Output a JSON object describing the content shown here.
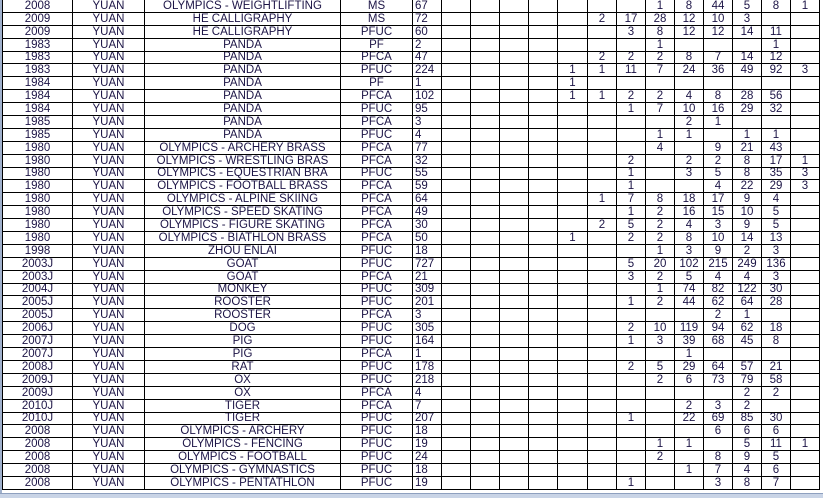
{
  "rows": [
    [
      "2008",
      "YUAN",
      "OLYMPICS - WEIGHTLIFTING",
      "MS",
      "67",
      [
        "",
        "",
        "",
        "",
        "",
        "",
        "",
        "1",
        "8",
        "44",
        "5",
        "8",
        "1"
      ]
    ],
    [
      "2009",
      "YUAN",
      "HE CALLIGRAPHY",
      "MS",
      "72",
      [
        "",
        "",
        "",
        "",
        "",
        "2",
        "17",
        "28",
        "12",
        "10",
        "3",
        "",
        ""
      ]
    ],
    [
      "2009",
      "YUAN",
      "HE CALLIGRAPHY",
      "PFUC",
      "60",
      [
        "",
        "",
        "",
        "",
        "",
        "",
        "3",
        "8",
        "12",
        "12",
        "14",
        "11",
        ""
      ]
    ],
    [
      "1983",
      "YUAN",
      "PANDA",
      "PF",
      "2",
      [
        "",
        "",
        "",
        "",
        "",
        "",
        "",
        "1",
        "",
        "",
        "",
        "1",
        ""
      ]
    ],
    [
      "1983",
      "YUAN",
      "PANDA",
      "PFCA",
      "47",
      [
        "",
        "",
        "",
        "",
        "",
        "2",
        "2",
        "2",
        "8",
        "7",
        "14",
        "12",
        ""
      ]
    ],
    [
      "1983",
      "YUAN",
      "PANDA",
      "PFUC",
      "224",
      [
        "",
        "",
        "",
        "",
        "1",
        "1",
        "11",
        "7",
        "24",
        "36",
        "49",
        "92",
        "3"
      ]
    ],
    [
      "1984",
      "YUAN",
      "PANDA",
      "PF",
      "1",
      [
        "",
        "",
        "",
        "",
        "1",
        "",
        "",
        "",
        "",
        "",
        "",
        "",
        ""
      ]
    ],
    [
      "1984",
      "YUAN",
      "PANDA",
      "PFCA",
      "102",
      [
        "",
        "",
        "",
        "",
        "1",
        "1",
        "2",
        "2",
        "4",
        "8",
        "28",
        "56",
        ""
      ]
    ],
    [
      "1984",
      "YUAN",
      "PANDA",
      "PFUC",
      "95",
      [
        "",
        "",
        "",
        "",
        "",
        "",
        "1",
        "7",
        "10",
        "16",
        "29",
        "32",
        ""
      ]
    ],
    [
      "1985",
      "YUAN",
      "PANDA",
      "PFCA",
      "3",
      [
        "",
        "",
        "",
        "",
        "",
        "",
        "",
        "",
        "2",
        "1",
        "",
        "",
        ""
      ]
    ],
    [
      "1985",
      "YUAN",
      "PANDA",
      "PFUC",
      "4",
      [
        "",
        "",
        "",
        "",
        "",
        "",
        "",
        "1",
        "1",
        "",
        "1",
        "1",
        ""
      ]
    ],
    [
      "1980",
      "YUAN",
      "OLYMPICS - ARCHERY BRASS",
      "PFCA",
      "77",
      [
        "",
        "",
        "",
        "",
        "",
        "",
        "",
        "4",
        "",
        "9",
        "21",
        "43",
        ""
      ]
    ],
    [
      "1980",
      "YUAN",
      "OLYMPICS - WRESTLING BRAS",
      "PFCA",
      "32",
      [
        "",
        "",
        "",
        "",
        "",
        "",
        "2",
        "",
        "2",
        "2",
        "8",
        "17",
        "1"
      ]
    ],
    [
      "1980",
      "YUAN",
      "OLYMPICS - EQUESTRIAN BRA",
      "PFUC",
      "55",
      [
        "",
        "",
        "",
        "",
        "",
        "",
        "1",
        "",
        "3",
        "5",
        "8",
        "35",
        "3"
      ]
    ],
    [
      "1980",
      "YUAN",
      "OLYMPICS - FOOTBALL BRASS",
      "PFCA",
      "59",
      [
        "",
        "",
        "",
        "",
        "",
        "",
        "1",
        "",
        "",
        "4",
        "22",
        "29",
        "3"
      ]
    ],
    [
      "1980",
      "YUAN",
      "OLYMPICS - ALPINE SKIING",
      "PFCA",
      "64",
      [
        "",
        "",
        "",
        "",
        "",
        "1",
        "7",
        "8",
        "18",
        "17",
        "9",
        "4",
        ""
      ]
    ],
    [
      "1980",
      "YUAN",
      "OLYMPICS - SPEED SKATING",
      "PFCA",
      "49",
      [
        "",
        "",
        "",
        "",
        "",
        "",
        "1",
        "2",
        "16",
        "15",
        "10",
        "5",
        ""
      ]
    ],
    [
      "1980",
      "YUAN",
      "OLYMPICS - FIGURE SKATING",
      "PFCA",
      "30",
      [
        "",
        "",
        "",
        "",
        "",
        "2",
        "5",
        "2",
        "4",
        "3",
        "9",
        "5",
        ""
      ]
    ],
    [
      "1980",
      "YUAN",
      "OLYMPICS - BIATHLON BRASS",
      "PFCA",
      "50",
      [
        "",
        "",
        "",
        "",
        "1",
        "",
        "2",
        "2",
        "8",
        "10",
        "14",
        "13",
        ""
      ]
    ],
    [
      "1998",
      "YUAN",
      "ZHOU ENLAI",
      "PFUC",
      "18",
      [
        "",
        "",
        "",
        "",
        "",
        "",
        "",
        "1",
        "3",
        "9",
        "2",
        "3",
        ""
      ]
    ],
    [
      "2003J",
      "YUAN",
      "GOAT",
      "PFUC",
      "727",
      [
        "",
        "",
        "",
        "",
        "",
        "",
        "5",
        "20",
        "102",
        "215",
        "249",
        "136",
        ""
      ]
    ],
    [
      "2003J",
      "YUAN",
      "GOAT",
      "PFCA",
      "21",
      [
        "",
        "",
        "",
        "",
        "",
        "",
        "3",
        "2",
        "5",
        "4",
        "4",
        "3",
        ""
      ]
    ],
    [
      "2004J",
      "YUAN",
      "MONKEY",
      "PFUC",
      "309",
      [
        "",
        "",
        "",
        "",
        "",
        "",
        "",
        "1",
        "74",
        "82",
        "122",
        "30",
        ""
      ]
    ],
    [
      "2005J",
      "YUAN",
      "ROOSTER",
      "PFUC",
      "201",
      [
        "",
        "",
        "",
        "",
        "",
        "",
        "1",
        "2",
        "44",
        "62",
        "64",
        "28",
        ""
      ]
    ],
    [
      "2005J",
      "YUAN",
      "ROOSTER",
      "PFCA",
      "3",
      [
        "",
        "",
        "",
        "",
        "",
        "",
        "",
        "",
        "",
        "2",
        "1",
        "",
        ""
      ]
    ],
    [
      "2006J",
      "YUAN",
      "DOG",
      "PFUC",
      "305",
      [
        "",
        "",
        "",
        "",
        "",
        "",
        "2",
        "10",
        "119",
        "94",
        "62",
        "18",
        ""
      ]
    ],
    [
      "2007J",
      "YUAN",
      "PIG",
      "PFUC",
      "164",
      [
        "",
        "",
        "",
        "",
        "",
        "",
        "1",
        "3",
        "39",
        "68",
        "45",
        "8",
        ""
      ]
    ],
    [
      "2007J",
      "YUAN",
      "PIG",
      "PFCA",
      "1",
      [
        "",
        "",
        "",
        "",
        "",
        "",
        "",
        "",
        "1",
        "",
        "",
        "",
        ""
      ]
    ],
    [
      "2008J",
      "YUAN",
      "RAT",
      "PFUC",
      "178",
      [
        "",
        "",
        "",
        "",
        "",
        "",
        "2",
        "5",
        "29",
        "64",
        "57",
        "21",
        ""
      ]
    ],
    [
      "2009J",
      "YUAN",
      "OX",
      "PFUC",
      "218",
      [
        "",
        "",
        "",
        "",
        "",
        "",
        "",
        "2",
        "6",
        "73",
        "79",
        "58",
        ""
      ]
    ],
    [
      "2009J",
      "YUAN",
      "OX",
      "PFCA",
      "4",
      [
        "",
        "",
        "",
        "",
        "",
        "",
        "",
        "",
        "",
        "",
        "2",
        "2",
        ""
      ]
    ],
    [
      "2010J",
      "YUAN",
      "TIGER",
      "PFCA",
      "7",
      [
        "",
        "",
        "",
        "",
        "",
        "",
        "",
        "",
        "2",
        "3",
        "2",
        "",
        ""
      ]
    ],
    [
      "2010J",
      "YUAN",
      "TIGER",
      "PFUC",
      "207",
      [
        "",
        "",
        "",
        "",
        "",
        "",
        "1",
        "",
        "22",
        "69",
        "85",
        "30",
        ""
      ]
    ],
    [
      "2008",
      "YUAN",
      "OLYMPICS - ARCHERY",
      "PFUC",
      "18",
      [
        "",
        "",
        "",
        "",
        "",
        "",
        "",
        "",
        "",
        "6",
        "6",
        "6",
        ""
      ]
    ],
    [
      "2008",
      "YUAN",
      "OLYMPICS - FENCING",
      "PFUC",
      "19",
      [
        "",
        "",
        "",
        "",
        "",
        "",
        "",
        "1",
        "1",
        "",
        "5",
        "11",
        "1"
      ]
    ],
    [
      "2008",
      "YUAN",
      "OLYMPICS - FOOTBALL",
      "PFUC",
      "24",
      [
        "",
        "",
        "",
        "",
        "",
        "",
        "",
        "2",
        "",
        "8",
        "9",
        "5",
        ""
      ]
    ],
    [
      "2008",
      "YUAN",
      "OLYMPICS - GYMNASTICS",
      "PFUC",
      "18",
      [
        "",
        "",
        "",
        "",
        "",
        "",
        "",
        "",
        "1",
        "7",
        "4",
        "6",
        ""
      ]
    ],
    [
      "2008",
      "YUAN",
      "OLYMPICS - PENTATHLON",
      "PFUC",
      "19",
      [
        "",
        "",
        "",
        "",
        "",
        "",
        "1",
        "",
        "",
        "3",
        "8",
        "7",
        ""
      ]
    ]
  ]
}
